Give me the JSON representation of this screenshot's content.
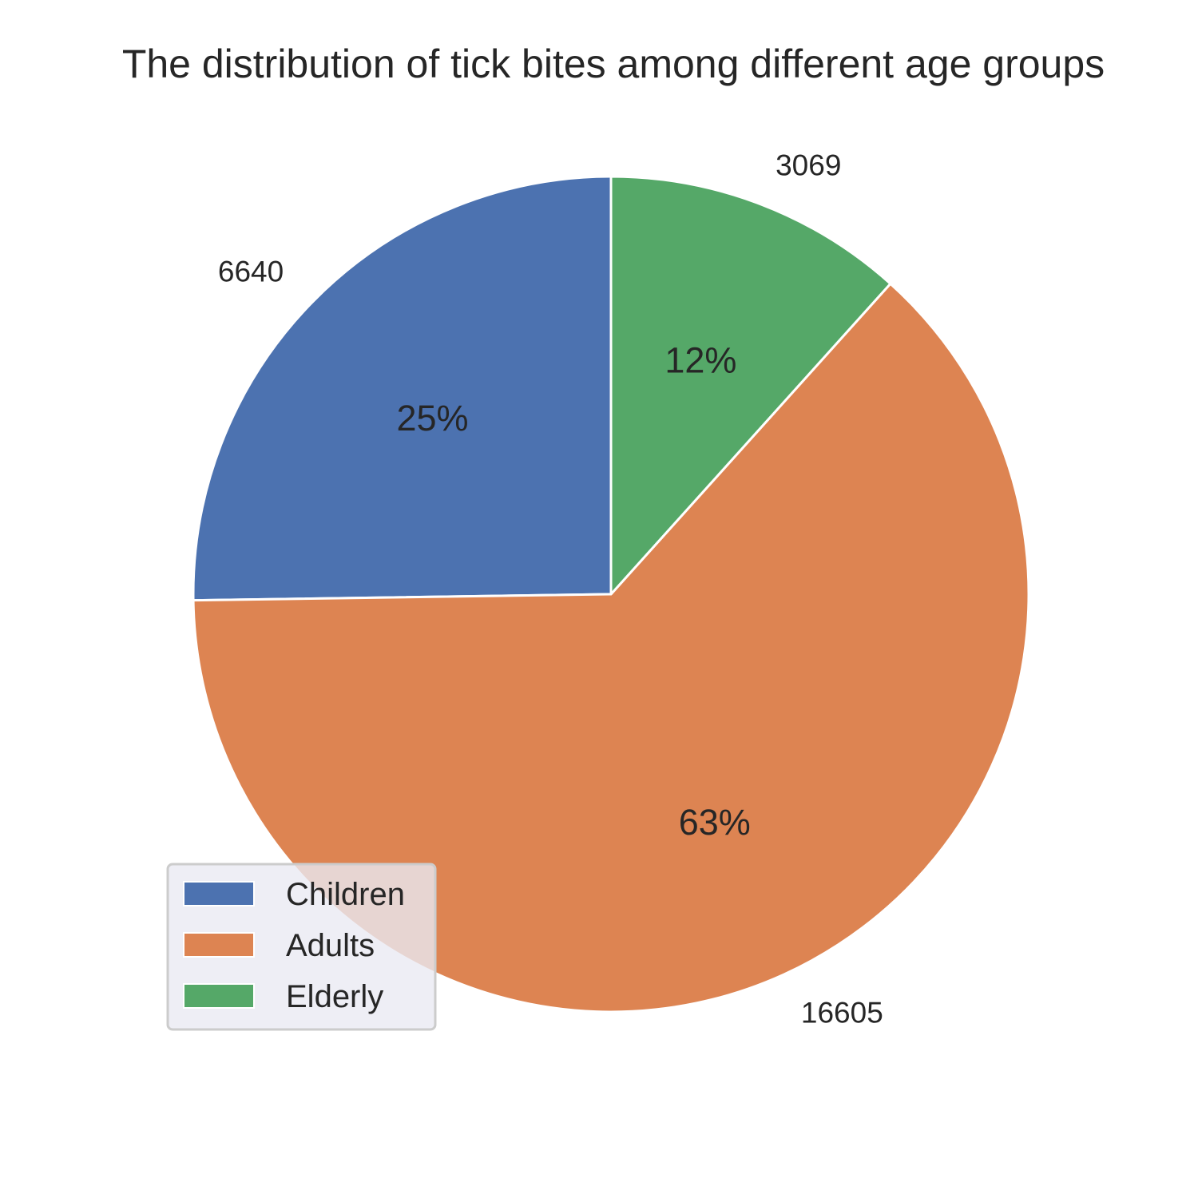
{
  "chart_data": {
    "type": "pie",
    "title": "The distribution of tick bites among different age groups",
    "slices": [
      {
        "name": "Children",
        "value": 6640,
        "percent_label": "25%",
        "value_label": "6640",
        "color": "#4c72b0"
      },
      {
        "name": "Adults",
        "value": 16605,
        "percent_label": "63%",
        "value_label": "16605",
        "color": "#dd8452"
      },
      {
        "name": "Elderly",
        "value": 3069,
        "percent_label": "12%",
        "value_label": "3069",
        "color": "#55a868"
      }
    ],
    "start_angle_deg": 90,
    "direction": "counterclockwise",
    "legend_placement": "lower-left",
    "legend_background": "#eaeaf2"
  }
}
